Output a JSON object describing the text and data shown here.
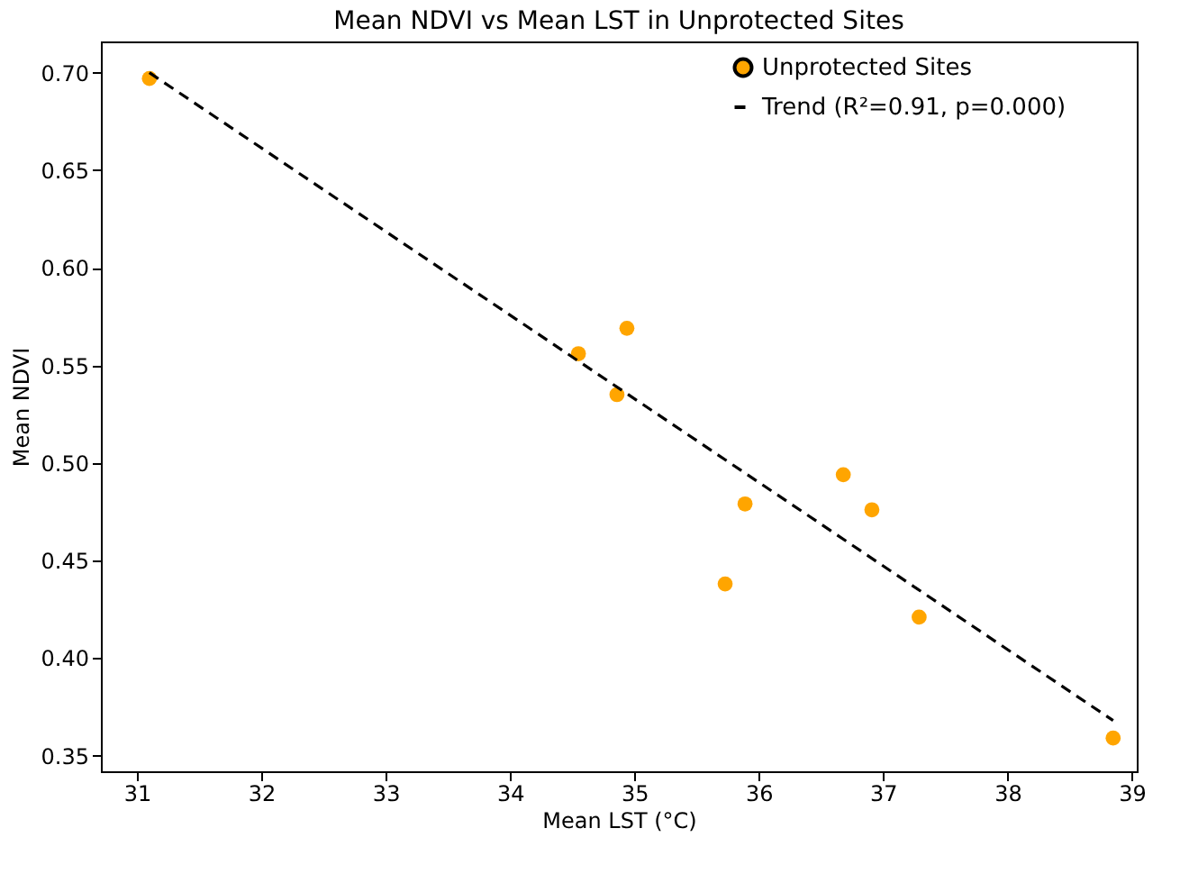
{
  "chart_data": {
    "type": "scatter",
    "title": "Mean NDVI vs Mean LST in Unprotected Sites",
    "xlabel": "Mean LST (°C)",
    "ylabel": "Mean NDVI",
    "marker": "circle",
    "series": [
      {
        "name": "Unprotected Sites",
        "color": "#ffa500",
        "x": [
          31.1,
          34.55,
          34.94,
          34.86,
          35.73,
          35.89,
          36.68,
          36.91,
          37.29,
          38.85
        ],
        "values": [
          0.697,
          0.556,
          0.569,
          0.535,
          0.438,
          0.479,
          0.494,
          0.476,
          0.421,
          0.359
        ]
      },
      {
        "name": "Trend (R²=0.91, p=0.000)",
        "type": "line",
        "color": "#000000",
        "line_style": "dashed",
        "marker": "none",
        "x": [
          31.1,
          38.85
        ],
        "values": [
          0.7,
          0.368
        ]
      }
    ],
    "xlim": [
      30.71,
      39.04
    ],
    "ylim": [
      0.342,
      0.716
    ],
    "xticks": [
      31,
      32,
      33,
      34,
      35,
      36,
      37,
      38,
      39
    ],
    "yticks": [
      0.35,
      {
        "value": 0.4,
        "label": "0.40"
      },
      0.45,
      {
        "value": 0.5,
        "label": "0.50"
      },
      0.55,
      {
        "value": 0.6,
        "label": "0.60"
      },
      0.65,
      {
        "value": 0.7,
        "label": "0.70"
      }
    ],
    "grid": false,
    "legend": "top right"
  }
}
